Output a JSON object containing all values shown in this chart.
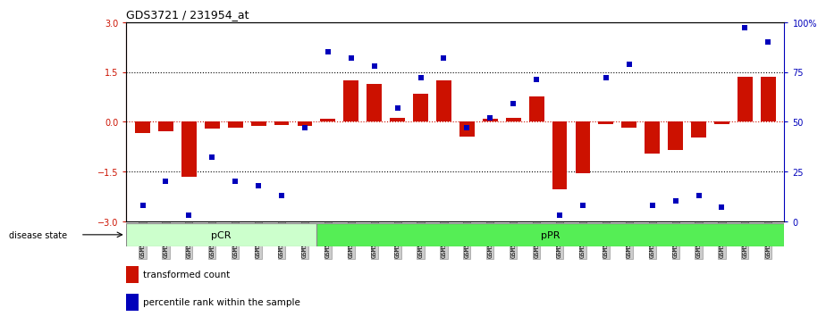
{
  "title": "GDS3721 / 231954_at",
  "samples": [
    "GSM559062",
    "GSM559063",
    "GSM559064",
    "GSM559065",
    "GSM559066",
    "GSM559067",
    "GSM559068",
    "GSM559069",
    "GSM559042",
    "GSM559043",
    "GSM559044",
    "GSM559045",
    "GSM559046",
    "GSM559047",
    "GSM559048",
    "GSM559049",
    "GSM559050",
    "GSM559051",
    "GSM559052",
    "GSM559053",
    "GSM559054",
    "GSM559055",
    "GSM559056",
    "GSM559057",
    "GSM559058",
    "GSM559059",
    "GSM559060",
    "GSM559061"
  ],
  "bar_values": [
    -0.35,
    -0.28,
    -1.65,
    -0.22,
    -0.18,
    -0.12,
    -0.1,
    -0.12,
    0.08,
    1.25,
    1.15,
    0.12,
    0.85,
    1.25,
    -0.45,
    0.08,
    0.12,
    0.75,
    -2.05,
    -1.55,
    -0.08,
    -0.18,
    -0.95,
    -0.85,
    -0.48,
    -0.08,
    1.35,
    1.35
  ],
  "percentile_values": [
    8,
    20,
    3,
    32,
    20,
    18,
    13,
    47,
    85,
    82,
    78,
    57,
    72,
    82,
    47,
    52,
    59,
    71,
    3,
    8,
    72,
    79,
    8,
    10,
    13,
    7,
    97,
    90
  ],
  "pcr_count": 8,
  "ppr_count": 20,
  "bar_color": "#cc1100",
  "dot_color": "#0000bb",
  "pcr_color": "#ccffcc",
  "ppr_color": "#55ee55",
  "ylim": [
    -3,
    3
  ],
  "yticks": [
    -3,
    -1.5,
    0,
    1.5,
    3
  ],
  "y2ticks": [
    0,
    25,
    50,
    75,
    100
  ],
  "tick_bg": "#cccccc",
  "tick_border": "#999999"
}
